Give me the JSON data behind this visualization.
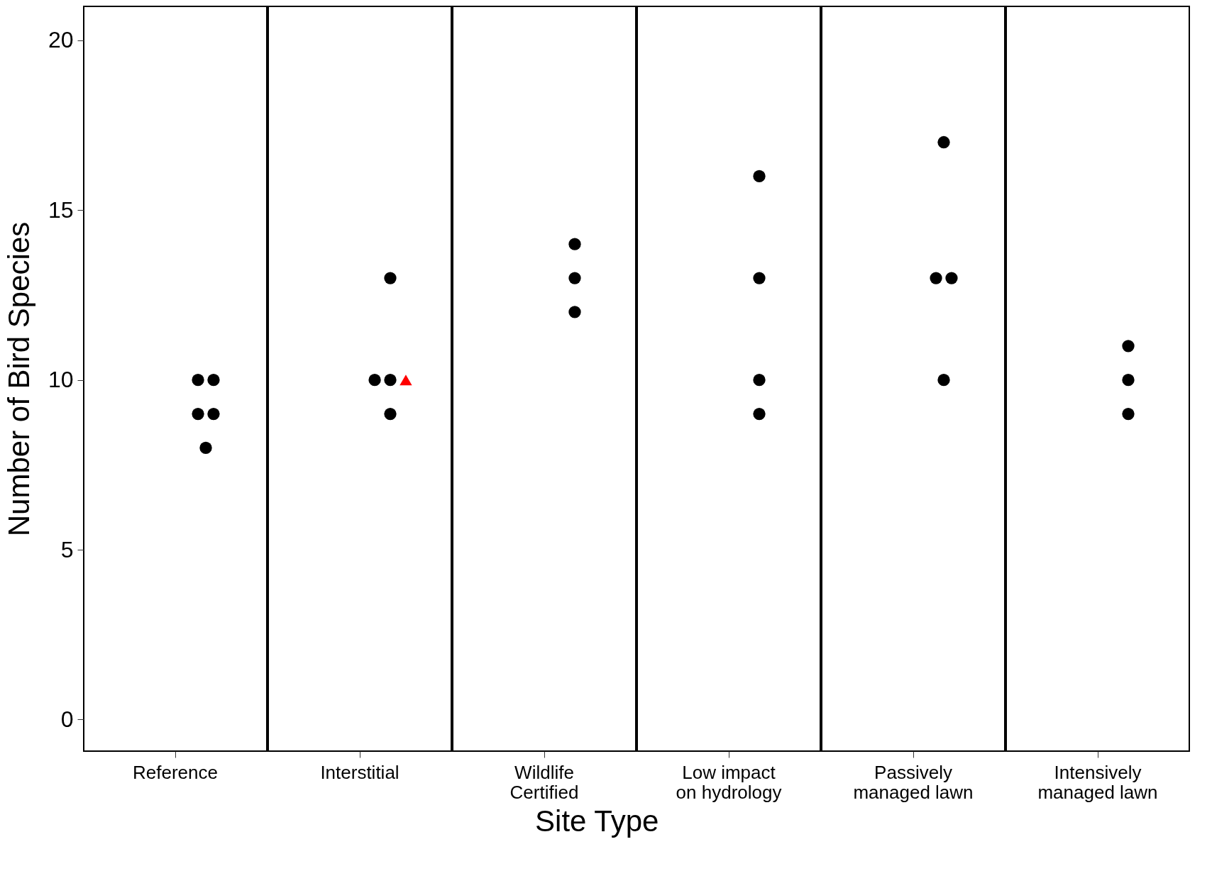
{
  "chart_data": [
    {
      "type": "scatter",
      "ylabel": "Number of Bird Species",
      "annotations": [
        "Site Type"
      ],
      "categories": [
        "Reference"
      ],
      "ylim": [
        -0.93,
        21
      ],
      "yticks": [
        0,
        5,
        10,
        15,
        20
      ],
      "grid": false,
      "series": [
        {
          "color": "#000000",
          "marker": "circle",
          "x": [
            "Reference",
            "Reference",
            "Reference",
            "Reference",
            "Reference"
          ],
          "values": [
            9,
            10,
            8,
            9,
            10
          ]
        }
      ]
    },
    {
      "type": "scatter",
      "categories": [
        "Interstitial"
      ],
      "ylim": [
        -0.93,
        21
      ],
      "yticks": [
        0,
        5,
        10,
        15,
        20
      ],
      "tick_labels": "x",
      "grid": false,
      "series": [
        {
          "color": "#000000",
          "marker": "circle",
          "x": [
            "Interstitial",
            "Interstitial",
            "Interstitial",
            "Interstitial"
          ],
          "values": [
            9,
            13,
            10,
            10
          ]
        },
        {
          "color": "#ff0000",
          "marker": "triangle",
          "x": [
            "Interstitial"
          ],
          "values": [
            10
          ]
        }
      ]
    },
    {
      "type": "scatter",
      "categories": [
        "Wildlife\nCertified"
      ],
      "ylim": [
        -0.93,
        21
      ],
      "yticks": [
        0,
        5,
        10,
        15,
        20
      ],
      "tick_labels": "x",
      "grid": false,
      "series": [
        {
          "color": "#000000",
          "marker": "circle",
          "x": [
            "Wildlife\nCertified",
            "Wildlife\nCertified",
            "Wildlife\nCertified"
          ],
          "values": [
            12,
            14,
            13
          ]
        }
      ]
    },
    {
      "type": "scatter",
      "categories": [
        "Low impact\non hydrology"
      ],
      "ylim": [
        -0.93,
        21
      ],
      "yticks": [
        0,
        5,
        10,
        15,
        20
      ],
      "tick_labels": "x",
      "grid": false,
      "series": [
        {
          "color": "#000000",
          "marker": "circle",
          "x": [
            "Low impact\non hydrology",
            "Low impact\non hydrology",
            "Low impact\non hydrology",
            "Low impact\non hydrology"
          ],
          "values": [
            13,
            9,
            10,
            16
          ]
        }
      ]
    },
    {
      "type": "scatter",
      "categories": [
        "Passively\nmanaged lawn"
      ],
      "ylim": [
        -0.93,
        21
      ],
      "yticks": [
        0,
        5,
        10,
        15,
        20
      ],
      "tick_labels": "x",
      "grid": false,
      "series": [
        {
          "color": "#000000",
          "marker": "circle",
          "x": [
            "Passively\nmanaged lawn",
            "Passively\nmanaged lawn",
            "Passively\nmanaged lawn",
            "Passively\nmanaged lawn"
          ],
          "values": [
            13,
            17,
            13,
            10
          ]
        }
      ]
    },
    {
      "type": "scatter",
      "categories": [
        "Intensively\nmanaged lawn"
      ],
      "ylim": [
        -0.93,
        21
      ],
      "yticks": [
        0,
        5,
        10,
        15,
        20
      ],
      "tick_labels": "x",
      "grid": false,
      "series": [
        {
          "color": "#000000",
          "marker": "circle",
          "x": [
            "Intensively\nmanaged lawn",
            "Intensively\nmanaged lawn",
            "Intensively\nmanaged lawn"
          ],
          "values": [
            10,
            9,
            11
          ]
        }
      ]
    }
  ]
}
